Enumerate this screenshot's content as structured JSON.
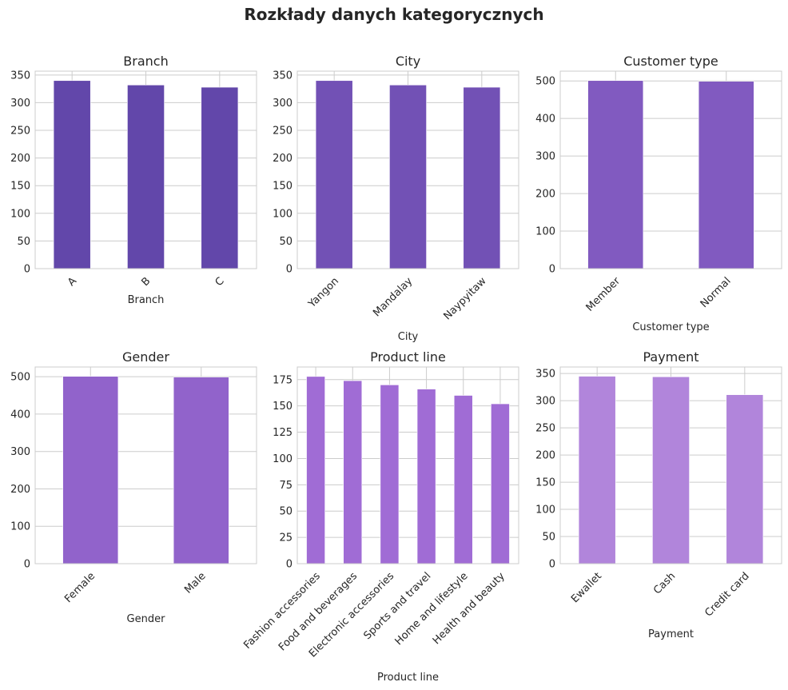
{
  "figure_title": "Rozkłady danych kategorycznych",
  "chart_data": [
    {
      "type": "bar",
      "title": "Branch",
      "xlabel": "Branch",
      "ylabel": "",
      "categories": [
        "A",
        "B",
        "C"
      ],
      "values": [
        340,
        332,
        328
      ],
      "ylim": [
        0,
        357
      ],
      "yticks": [
        0,
        50,
        100,
        150,
        200,
        250,
        300,
        350
      ],
      "color": "#6247aa",
      "grid": true
    },
    {
      "type": "bar",
      "title": "City",
      "xlabel": "City",
      "ylabel": "",
      "categories": [
        "Yangon",
        "Mandalay",
        "Naypyitaw"
      ],
      "values": [
        340,
        332,
        328
      ],
      "ylim": [
        0,
        357
      ],
      "yticks": [
        0,
        50,
        100,
        150,
        200,
        250,
        300,
        350
      ],
      "color": "#7251b5",
      "grid": true
    },
    {
      "type": "bar",
      "title": "Customer type",
      "xlabel": "Customer type",
      "ylabel": "",
      "categories": [
        "Member",
        "Normal"
      ],
      "values": [
        501,
        499
      ],
      "ylim": [
        0,
        526
      ],
      "yticks": [
        0,
        100,
        200,
        300,
        400,
        500
      ],
      "color": "#815ac0",
      "grid": true
    },
    {
      "type": "bar",
      "title": "Gender",
      "xlabel": "Gender",
      "ylabel": "",
      "categories": [
        "Female",
        "Male"
      ],
      "values": [
        501,
        499
      ],
      "ylim": [
        0,
        526
      ],
      "yticks": [
        0,
        100,
        200,
        300,
        400,
        500
      ],
      "color": "#9163cb",
      "grid": true
    },
    {
      "type": "bar",
      "title": "Product line",
      "xlabel": "Product line",
      "ylabel": "",
      "categories": [
        "Fashion accessories",
        "Food and beverages",
        "Electronic accessories",
        "Sports and travel",
        "Home and lifestyle",
        "Health and beauty"
      ],
      "values": [
        178,
        174,
        170,
        166,
        160,
        152
      ],
      "ylim": [
        0,
        187
      ],
      "yticks": [
        0,
        25,
        50,
        75,
        100,
        125,
        150,
        175
      ],
      "color": "#a06cd5",
      "grid": true
    },
    {
      "type": "bar",
      "title": "Payment",
      "xlabel": "Payment",
      "ylabel": "",
      "categories": [
        "Ewallet",
        "Cash",
        "Credit card"
      ],
      "values": [
        345,
        344,
        311
      ],
      "ylim": [
        0,
        362
      ],
      "yticks": [
        0,
        50,
        100,
        150,
        200,
        250,
        300,
        350
      ],
      "color": "#b185db",
      "grid": true
    }
  ]
}
